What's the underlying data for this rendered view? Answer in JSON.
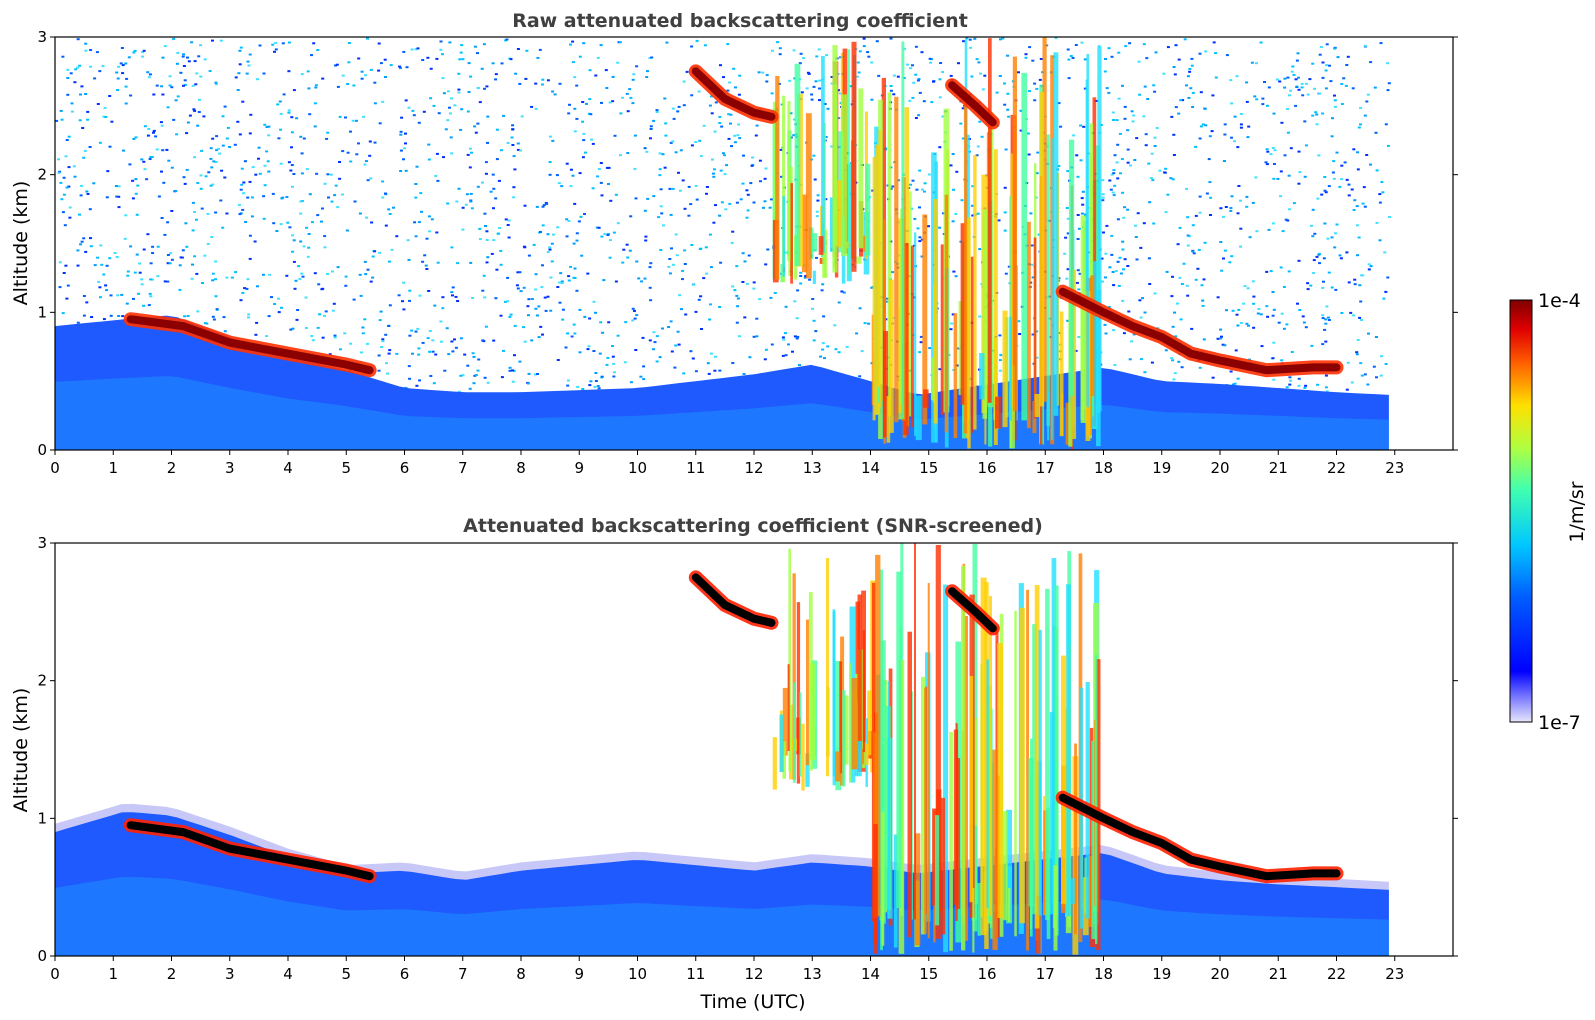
{
  "chart_data": [
    {
      "type": "heatmap",
      "title": "Raw attenuated backscattering coefficient",
      "xlabel": "",
      "ylabel": "Altitude (km)",
      "xlim": [
        0,
        24
      ],
      "ylim": [
        0,
        3
      ],
      "xticks": [
        "0",
        "1",
        "2",
        "3",
        "4",
        "5",
        "6",
        "7",
        "8",
        "9",
        "10",
        "11",
        "12",
        "13",
        "14",
        "15",
        "16",
        "17",
        "18",
        "19",
        "20",
        "21",
        "22",
        "23"
      ],
      "yticks": [
        "0",
        "1",
        "2",
        "3"
      ],
      "data_extent_x": [
        0,
        22.9
      ],
      "colorscale": "jet",
      "features": [
        {
          "kind": "boundary-layer top",
          "x": [
            0,
            1.2,
            2.0,
            3.0,
            4.0,
            5.0,
            6.0,
            7.0,
            8.0,
            10.0,
            12.0,
            13.0,
            14.0,
            14.8,
            18.0,
            19.0,
            20.0,
            21.0,
            22.0,
            22.9
          ],
          "y": [
            0.9,
            0.95,
            0.98,
            0.82,
            0.68,
            0.58,
            0.45,
            0.42,
            0.42,
            0.45,
            0.55,
            0.62,
            0.5,
            0.4,
            0.6,
            0.5,
            0.48,
            0.45,
            0.42,
            0.4
          ]
        },
        {
          "kind": "strong layer",
          "x": [
            1.3,
            2.2,
            3.0,
            4.0,
            5.0,
            5.4
          ],
          "y": [
            0.95,
            0.9,
            0.78,
            0.7,
            0.62,
            0.58
          ]
        },
        {
          "kind": "strong layer",
          "x": [
            11.0,
            11.5,
            12.0,
            12.3
          ],
          "y": [
            2.75,
            2.55,
            2.45,
            2.42
          ]
        },
        {
          "kind": "strong layer",
          "x": [
            15.4,
            15.8,
            16.1
          ],
          "y": [
            2.65,
            2.5,
            2.38
          ]
        },
        {
          "kind": "strong layer",
          "x": [
            17.3,
            18.0,
            18.5,
            19.0,
            19.5,
            20.0,
            20.8,
            21.6,
            22.0
          ],
          "y": [
            1.15,
            1.0,
            0.9,
            0.82,
            0.7,
            0.65,
            0.58,
            0.6,
            0.6
          ]
        },
        {
          "kind": "precipitation streaks",
          "x": [
            12.3,
            13.9
          ],
          "y": [
            1.3,
            3.0
          ]
        },
        {
          "kind": "precipitation streaks",
          "x": [
            14.5,
            18.0
          ],
          "y": [
            0.0,
            3.0
          ]
        }
      ]
    },
    {
      "type": "heatmap",
      "title": "Attenuated backscattering coefficient (SNR-screened)",
      "xlabel": "Time (UTC)",
      "ylabel": "Altitude (km)",
      "xlim": [
        0,
        24
      ],
      "ylim": [
        0,
        3
      ],
      "xticks": [
        "0",
        "1",
        "2",
        "3",
        "4",
        "5",
        "6",
        "7",
        "8",
        "9",
        "10",
        "11",
        "12",
        "13",
        "14",
        "15",
        "16",
        "17",
        "18",
        "19",
        "20",
        "21",
        "22",
        "23"
      ],
      "yticks": [
        "0",
        "1",
        "2",
        "3"
      ],
      "data_extent_x": [
        0,
        22.9
      ],
      "colorscale": "jet",
      "features": [
        {
          "kind": "boundary-layer top",
          "x": [
            0,
            1.2,
            2.0,
            3.0,
            4.0,
            5.0,
            6.0,
            7.0,
            8.0,
            10.0,
            12.0,
            13.0,
            14.0,
            14.8,
            18.0,
            19.0,
            20.0,
            21.0,
            22.0,
            22.9
          ],
          "y": [
            0.9,
            1.05,
            1.02,
            0.88,
            0.72,
            0.6,
            0.62,
            0.55,
            0.62,
            0.7,
            0.62,
            0.68,
            0.65,
            0.6,
            0.75,
            0.6,
            0.55,
            0.52,
            0.5,
            0.48
          ]
        },
        {
          "kind": "strong layer",
          "x": [
            1.3,
            2.2,
            3.0,
            4.0,
            5.0,
            5.4
          ],
          "y": [
            0.95,
            0.9,
            0.78,
            0.7,
            0.62,
            0.58
          ]
        },
        {
          "kind": "strong layer",
          "x": [
            11.0,
            11.5,
            12.0,
            12.3
          ],
          "y": [
            2.75,
            2.55,
            2.45,
            2.42
          ]
        },
        {
          "kind": "strong layer",
          "x": [
            15.4,
            15.8,
            16.1
          ],
          "y": [
            2.65,
            2.5,
            2.38
          ]
        },
        {
          "kind": "strong layer",
          "x": [
            17.3,
            18.0,
            18.5,
            19.0,
            19.5,
            20.0,
            20.8,
            21.6,
            22.0
          ],
          "y": [
            1.15,
            1.0,
            0.9,
            0.82,
            0.7,
            0.65,
            0.58,
            0.6,
            0.6
          ]
        }
      ]
    }
  ],
  "colorbar": {
    "max_label": "1e-4",
    "min_label": "1e-7",
    "unit_label": "1/m/sr",
    "scale": "log",
    "range": [
      1e-07,
      0.0001
    ]
  },
  "colors": {
    "jet_dark_red": "#7f0000",
    "jet_red": "#ff2a00",
    "jet_yellow": "#ffd400",
    "jet_green": "#7fff7f",
    "jet_cyan": "#00d4ff",
    "jet_blue": "#0040ff",
    "jet_dark_blue": "#0000c0",
    "saturated": "#000000",
    "background": "#ffffff"
  }
}
